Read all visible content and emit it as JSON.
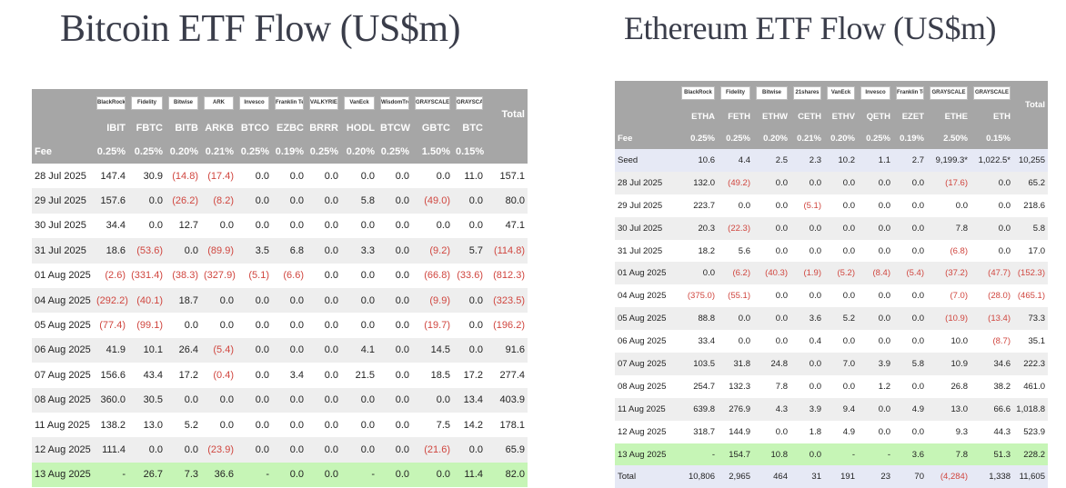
{
  "btc": {
    "title": "Bitcoin ETF Flow (US$m)",
    "issuers": [
      "BlackRock",
      "Fidelity",
      "Bitwise",
      "ARK",
      "Invesco",
      "Franklin Templeton",
      "VALKYRIE",
      "VanEck",
      "WisdomTree",
      "GRAYSCALE",
      "GRAYSCALE"
    ],
    "tickers": [
      "IBIT",
      "FBTC",
      "BITB",
      "ARKB",
      "BTCO",
      "EZBC",
      "BRRR",
      "HODL",
      "BTCW",
      "GBTC",
      "BTC"
    ],
    "total_label": "Total",
    "fee_label": "Fee",
    "fees": [
      "0.25%",
      "0.25%",
      "0.20%",
      "0.21%",
      "0.25%",
      "0.19%",
      "0.25%",
      "0.20%",
      "0.25%",
      "1.50%",
      "0.15%"
    ],
    "rows": [
      {
        "date": "28 Jul 2025",
        "values": [
          "147.4",
          "30.9",
          "(14.8)",
          "(17.4)",
          "0.0",
          "0.0",
          "0.0",
          "0.0",
          "0.0",
          "0.0",
          "11.0",
          "157.1"
        ]
      },
      {
        "date": "29 Jul 2025",
        "values": [
          "157.6",
          "0.0",
          "(26.2)",
          "(8.2)",
          "0.0",
          "0.0",
          "0.0",
          "5.8",
          "0.0",
          "(49.0)",
          "0.0",
          "80.0"
        ]
      },
      {
        "date": "30 Jul 2025",
        "values": [
          "34.4",
          "0.0",
          "12.7",
          "0.0",
          "0.0",
          "0.0",
          "0.0",
          "0.0",
          "0.0",
          "0.0",
          "0.0",
          "47.1"
        ]
      },
      {
        "date": "31 Jul 2025",
        "values": [
          "18.6",
          "(53.6)",
          "0.0",
          "(89.9)",
          "3.5",
          "6.8",
          "0.0",
          "3.3",
          "0.0",
          "(9.2)",
          "5.7",
          "(114.8)"
        ]
      },
      {
        "date": "01 Aug 2025",
        "values": [
          "(2.6)",
          "(331.4)",
          "(38.3)",
          "(327.9)",
          "(5.1)",
          "(6.6)",
          "0.0",
          "0.0",
          "0.0",
          "(66.8)",
          "(33.6)",
          "(812.3)"
        ]
      },
      {
        "date": "04 Aug 2025",
        "values": [
          "(292.2)",
          "(40.1)",
          "18.7",
          "0.0",
          "0.0",
          "0.0",
          "0.0",
          "0.0",
          "0.0",
          "(9.9)",
          "0.0",
          "(323.5)"
        ]
      },
      {
        "date": "05 Aug 2025",
        "values": [
          "(77.4)",
          "(99.1)",
          "0.0",
          "0.0",
          "0.0",
          "0.0",
          "0.0",
          "0.0",
          "0.0",
          "(19.7)",
          "0.0",
          "(196.2)"
        ]
      },
      {
        "date": "06 Aug 2025",
        "values": [
          "41.9",
          "10.1",
          "26.4",
          "(5.4)",
          "0.0",
          "0.0",
          "0.0",
          "4.1",
          "0.0",
          "14.5",
          "0.0",
          "91.6"
        ]
      },
      {
        "date": "07 Aug 2025",
        "values": [
          "156.6",
          "43.4",
          "17.2",
          "(0.4)",
          "0.0",
          "3.4",
          "0.0",
          "21.5",
          "0.0",
          "18.5",
          "17.2",
          "277.4"
        ]
      },
      {
        "date": "08 Aug 2025",
        "values": [
          "360.0",
          "30.5",
          "0.0",
          "0.0",
          "0.0",
          "0.0",
          "0.0",
          "0.0",
          "0.0",
          "0.0",
          "13.4",
          "403.9"
        ]
      },
      {
        "date": "11 Aug 2025",
        "values": [
          "138.2",
          "13.0",
          "5.2",
          "0.0",
          "0.0",
          "0.0",
          "0.0",
          "0.0",
          "0.0",
          "7.5",
          "14.2",
          "178.1"
        ]
      },
      {
        "date": "12 Aug 2025",
        "values": [
          "111.4",
          "0.0",
          "0.0",
          "(23.9)",
          "0.0",
          "0.0",
          "0.0",
          "0.0",
          "0.0",
          "(21.6)",
          "0.0",
          "65.9"
        ]
      },
      {
        "date": "13 Aug 2025",
        "values": [
          "-",
          "26.7",
          "7.3",
          "36.6",
          "-",
          "0.0",
          "0.0",
          "-",
          "0.0",
          "0.0",
          "11.4",
          "82.0"
        ],
        "highlight": true
      }
    ]
  },
  "eth": {
    "title": "Ethereum ETF Flow (US$m)",
    "issuers": [
      "BlackRock",
      "Fidelity",
      "Bitwise",
      "21shares",
      "VanEck",
      "Invesco",
      "Franklin Templeton",
      "GRAYSCALE",
      "GRAYSCALE"
    ],
    "tickers": [
      "ETHA",
      "FETH",
      "ETHW",
      "CETH",
      "ETHV",
      "QETH",
      "EZET",
      "ETHE",
      "ETH"
    ],
    "total_label": "Total",
    "fee_label": "Fee",
    "fees": [
      "0.25%",
      "0.25%",
      "0.20%",
      "0.21%",
      "0.20%",
      "0.25%",
      "0.19%",
      "2.50%",
      "0.15%"
    ],
    "rows": [
      {
        "date": "Seed",
        "values": [
          "10.6",
          "4.4",
          "2.5",
          "2.3",
          "10.2",
          "1.1",
          "2.7",
          "9,199.3*",
          "1,022.5*",
          "10,255"
        ],
        "seed": true
      },
      {
        "date": "28 Jul 2025",
        "values": [
          "132.0",
          "(49.2)",
          "0.0",
          "0.0",
          "0.0",
          "0.0",
          "0.0",
          "(17.6)",
          "0.0",
          "65.2"
        ]
      },
      {
        "date": "29 Jul 2025",
        "values": [
          "223.7",
          "0.0",
          "0.0",
          "(5.1)",
          "0.0",
          "0.0",
          "0.0",
          "0.0",
          "0.0",
          "218.6"
        ]
      },
      {
        "date": "30 Jul 2025",
        "values": [
          "20.3",
          "(22.3)",
          "0.0",
          "0.0",
          "0.0",
          "0.0",
          "0.0",
          "7.8",
          "0.0",
          "5.8"
        ]
      },
      {
        "date": "31 Jul 2025",
        "values": [
          "18.2",
          "5.6",
          "0.0",
          "0.0",
          "0.0",
          "0.0",
          "0.0",
          "(6.8)",
          "0.0",
          "17.0"
        ]
      },
      {
        "date": "01 Aug 2025",
        "values": [
          "0.0",
          "(6.2)",
          "(40.3)",
          "(1.9)",
          "(5.2)",
          "(8.4)",
          "(5.4)",
          "(37.2)",
          "(47.7)",
          "(152.3)"
        ]
      },
      {
        "date": "04 Aug 2025",
        "values": [
          "(375.0)",
          "(55.1)",
          "0.0",
          "0.0",
          "0.0",
          "0.0",
          "0.0",
          "(7.0)",
          "(28.0)",
          "(465.1)"
        ]
      },
      {
        "date": "05 Aug 2025",
        "values": [
          "88.8",
          "0.0",
          "0.0",
          "3.6",
          "5.2",
          "0.0",
          "0.0",
          "(10.9)",
          "(13.4)",
          "73.3"
        ]
      },
      {
        "date": "06 Aug 2025",
        "values": [
          "33.4",
          "0.0",
          "0.0",
          "0.4",
          "0.0",
          "0.0",
          "0.0",
          "10.0",
          "(8.7)",
          "35.1"
        ]
      },
      {
        "date": "07 Aug 2025",
        "values": [
          "103.5",
          "31.8",
          "24.8",
          "0.0",
          "7.0",
          "3.9",
          "5.8",
          "10.9",
          "34.6",
          "222.3"
        ]
      },
      {
        "date": "08 Aug 2025",
        "values": [
          "254.7",
          "132.3",
          "7.8",
          "0.0",
          "0.0",
          "1.2",
          "0.0",
          "26.8",
          "38.2",
          "461.0"
        ]
      },
      {
        "date": "11 Aug 2025",
        "values": [
          "639.8",
          "276.9",
          "4.3",
          "3.9",
          "9.4",
          "0.0",
          "4.9",
          "13.0",
          "66.6",
          "1,018.8"
        ]
      },
      {
        "date": "12 Aug 2025",
        "values": [
          "318.7",
          "144.9",
          "0.0",
          "1.8",
          "4.9",
          "0.0",
          "0.0",
          "9.3",
          "44.3",
          "523.9"
        ]
      },
      {
        "date": "13 Aug 2025",
        "values": [
          "-",
          "154.7",
          "10.8",
          "0.0",
          "-",
          "-",
          "3.6",
          "7.8",
          "51.3",
          "228.2"
        ],
        "highlight": true
      },
      {
        "date": "Total",
        "values": [
          "10,806",
          "2,965",
          "464",
          "31",
          "191",
          "23",
          "70",
          "(4,284)",
          "1,338",
          "11,605"
        ],
        "total": true
      }
    ]
  }
}
